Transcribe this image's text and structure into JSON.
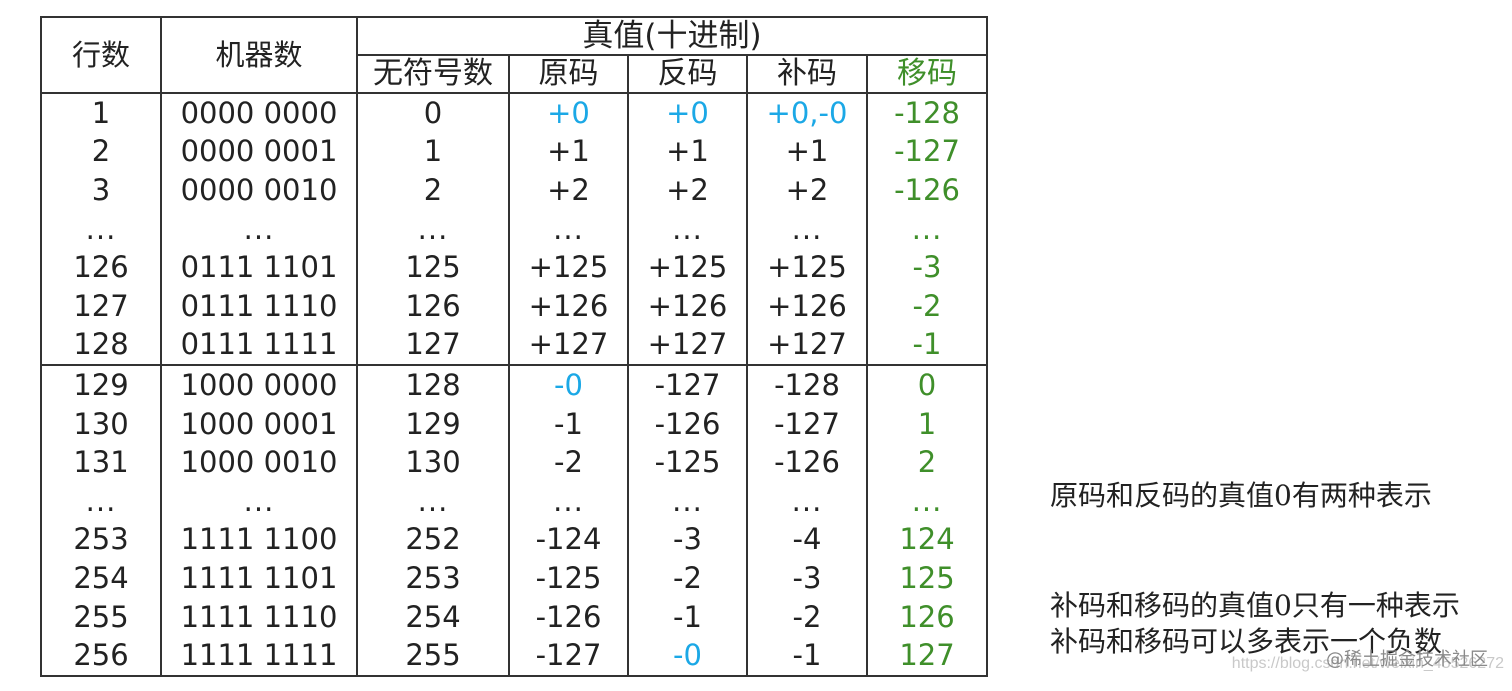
{
  "headers": {
    "row_no": "行数",
    "machine": "机器数",
    "truth_group": "真值(十进制)",
    "unsigned": "无符号数",
    "sign_mag": "原码",
    "ones": "反码",
    "twos": "补码",
    "biased": "移码"
  },
  "colors": {
    "blue": "#1ba8e6",
    "green": "#3f8f2a",
    "border": "#333333"
  },
  "rows": [
    {
      "n": "1",
      "m": "0000 0000",
      "u": "0",
      "s": "+0",
      "o": "+0",
      "t": "+0,-0",
      "b": "-128"
    },
    {
      "n": "2",
      "m": "0000 0001",
      "u": "1",
      "s": "+1",
      "o": "+1",
      "t": "+1",
      "b": "-127"
    },
    {
      "n": "3",
      "m": "0000 0010",
      "u": "2",
      "s": "+2",
      "o": "+2",
      "t": "+2",
      "b": "-126"
    },
    {
      "n": "...",
      "m": "...",
      "u": "...",
      "s": "...",
      "o": "...",
      "t": "...",
      "b": "..."
    },
    {
      "n": "126",
      "m": "0111 1101",
      "u": "125",
      "s": "+125",
      "o": "+125",
      "t": "+125",
      "b": "-3"
    },
    {
      "n": "127",
      "m": "0111 1110",
      "u": "126",
      "s": "+126",
      "o": "+126",
      "t": "+126",
      "b": "-2"
    },
    {
      "n": "128",
      "m": "0111 1111",
      "u": "127",
      "s": "+127",
      "o": "+127",
      "t": "+127",
      "b": "-1"
    },
    {
      "n": "129",
      "m": "1000 0000",
      "u": "128",
      "s": "-0",
      "o": "-127",
      "t": "-128",
      "b": "0"
    },
    {
      "n": "130",
      "m": "1000 0001",
      "u": "129",
      "s": "-1",
      "o": "-126",
      "t": "-127",
      "b": "1"
    },
    {
      "n": "131",
      "m": "1000 0010",
      "u": "130",
      "s": "-2",
      "o": "-125",
      "t": "-126",
      "b": "2"
    },
    {
      "n": "...",
      "m": "...",
      "u": "...",
      "s": "...",
      "o": "...",
      "t": "...",
      "b": "..."
    },
    {
      "n": "253",
      "m": "1111 1100",
      "u": "252",
      "s": "-124",
      "o": "-3",
      "t": "-4",
      "b": "124"
    },
    {
      "n": "254",
      "m": "1111 1101",
      "u": "253",
      "s": "-125",
      "o": "-2",
      "t": "-3",
      "b": "125"
    },
    {
      "n": "255",
      "m": "1111 1110",
      "u": "254",
      "s": "-126",
      "o": "-1",
      "t": "-2",
      "b": "126"
    },
    {
      "n": "256",
      "m": "1111 1111",
      "u": "255",
      "s": "-127",
      "o": "-0",
      "t": "-1",
      "b": "127"
    }
  ],
  "notes": {
    "line1": "原码和反码的真值0有两种表示",
    "line2": "补码和移码的真值0只有一种表示",
    "line3": "补码和移码可以多表示一个负数"
  },
  "watermark": {
    "site": "@稀土掘金技术社区",
    "url": "https://blog.csdn.net/weixin_45526272"
  }
}
